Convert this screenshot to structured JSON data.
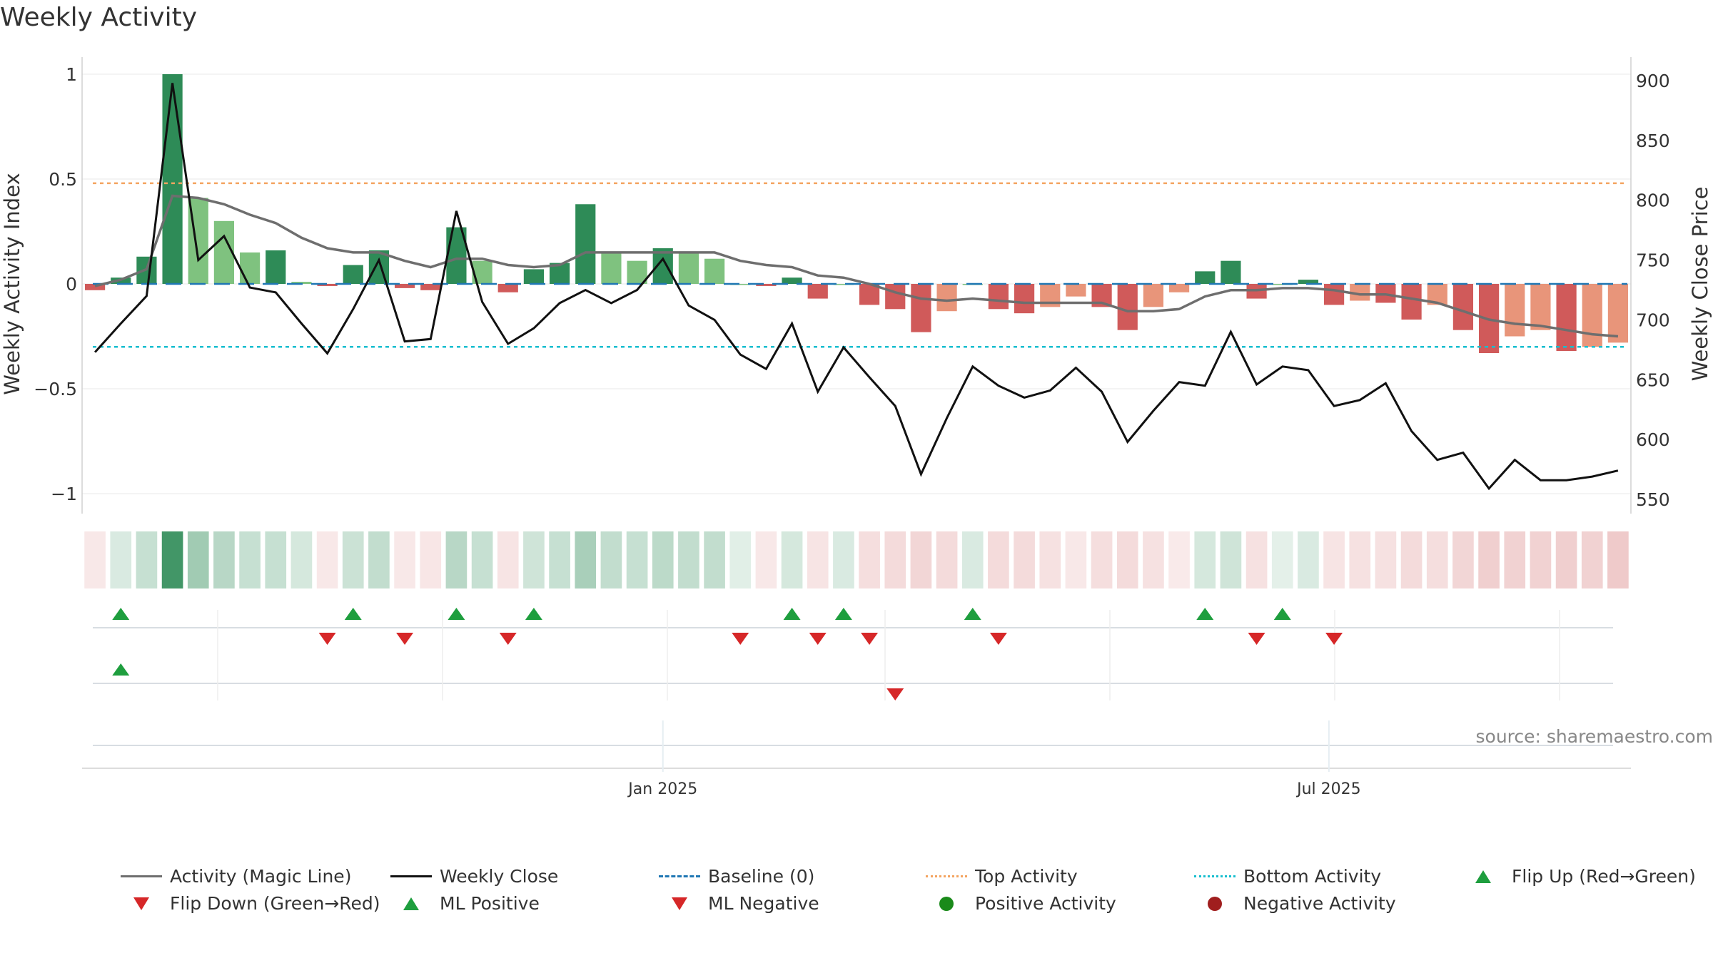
{
  "title": "Weekly Activity",
  "source": "source: sharemaestro.com",
  "colors": {
    "pos_strong": "#2e8b57",
    "pos_light": "#7fc27f",
    "neg_strong": "#d05a5a",
    "neg_light": "#e8957a",
    "magic_line": "#6e6e6e",
    "close_line": "#111111",
    "baseline": "#1f77b4",
    "top_line": "#f4a460",
    "bottom_line": "#17becf",
    "flip_up": "#1e9e3e",
    "flip_down": "#d62728",
    "pos_dot": "#1a8a1a",
    "neg_dot": "#a01e1e"
  },
  "chart_data": {
    "type": "bar+line",
    "title": "Weekly Activity",
    "ylabel_left": "Weekly Activity Index",
    "ylabel_right": "Weekly Close Price",
    "ylim_left": [
      -1.1,
      1.05
    ],
    "ylim_right": [
      545,
      905
    ],
    "yticks_left": [
      1,
      0.5,
      0,
      -0.5,
      -1
    ],
    "ytick_labels_left": [
      "1",
      "0.5",
      "0",
      "−0.5",
      "−1"
    ],
    "yticks_right": [
      900,
      850,
      800,
      750,
      700,
      650,
      600,
      550
    ],
    "ytick_labels_right": [
      "900",
      "850",
      "800",
      "750",
      "700",
      "650",
      "600",
      "550"
    ],
    "x_tick_labels": [
      {
        "label": "Jan 2025",
        "week": 22.5
      },
      {
        "label": "Jul 2025",
        "week": 48.3
      }
    ],
    "top_activity": 0.48,
    "bottom_activity": -0.3,
    "activity": [
      -0.03,
      0.03,
      0.13,
      1.0,
      0.41,
      0.3,
      0.15,
      0.16,
      0.01,
      -0.01,
      0.09,
      0.16,
      -0.02,
      -0.03,
      0.27,
      0.11,
      -0.04,
      0.07,
      0.1,
      0.38,
      0.15,
      0.11,
      0.17,
      0.15,
      0.12,
      0.0,
      -0.01,
      0.03,
      -0.07,
      0.0,
      -0.1,
      -0.12,
      -0.23,
      -0.13,
      0.0,
      -0.12,
      -0.14,
      -0.11,
      -0.06,
      -0.11,
      -0.22,
      -0.11,
      -0.04,
      0.06,
      0.11,
      -0.07,
      0.0,
      0.02,
      -0.1,
      -0.08,
      -0.09,
      -0.17,
      -0.1,
      -0.22,
      -0.33,
      -0.25,
      -0.22,
      -0.32,
      -0.3,
      -0.28
    ],
    "strong": [
      1,
      1,
      1,
      1,
      0,
      0,
      0,
      1,
      0,
      1,
      1,
      1,
      1,
      1,
      1,
      0,
      1,
      1,
      1,
      1,
      0,
      0,
      1,
      0,
      0,
      0,
      1,
      1,
      1,
      0,
      1,
      1,
      1,
      0,
      0,
      1,
      1,
      0,
      0,
      1,
      1,
      0,
      0,
      1,
      1,
      1,
      0,
      1,
      1,
      0,
      1,
      1,
      0,
      1,
      1,
      0,
      0,
      1,
      0,
      0
    ],
    "magic_line": [
      -0.01,
      0.02,
      0.07,
      0.42,
      0.41,
      0.38,
      0.33,
      0.29,
      0.22,
      0.17,
      0.15,
      0.15,
      0.11,
      0.08,
      0.12,
      0.12,
      0.09,
      0.08,
      0.09,
      0.15,
      0.15,
      0.15,
      0.15,
      0.15,
      0.15,
      0.11,
      0.09,
      0.08,
      0.04,
      0.03,
      0.0,
      -0.04,
      -0.07,
      -0.08,
      -0.07,
      -0.08,
      -0.09,
      -0.09,
      -0.09,
      -0.09,
      -0.13,
      -0.13,
      -0.12,
      -0.06,
      -0.03,
      -0.03,
      -0.02,
      -0.02,
      -0.03,
      -0.05,
      -0.05,
      -0.07,
      -0.09,
      -0.13,
      -0.17,
      -0.19,
      -0.2,
      -0.22,
      -0.24,
      -0.25
    ],
    "weekly_close": [
      673,
      697,
      720,
      898,
      750,
      770,
      727,
      723,
      697,
      672,
      709,
      750,
      682,
      684,
      791,
      715,
      680,
      693,
      714,
      725,
      714,
      725,
      751,
      712,
      700,
      671,
      659,
      697,
      640,
      677,
      652,
      628,
      571,
      618,
      661,
      645,
      635,
      641,
      660,
      640,
      598,
      624,
      648,
      645,
      690,
      646,
      661,
      658,
      628,
      633,
      647,
      607,
      583,
      589,
      559,
      583,
      566,
      566,
      569,
      574
    ],
    "intensity_strip": [
      0.15,
      0.2,
      0.3,
      1.0,
      0.5,
      0.38,
      0.3,
      0.3,
      0.22,
      0.15,
      0.28,
      0.32,
      0.15,
      0.17,
      0.38,
      0.3,
      0.18,
      0.25,
      0.3,
      0.45,
      0.32,
      0.3,
      0.35,
      0.32,
      0.32,
      0.15,
      0.15,
      0.22,
      0.18,
      0.2,
      0.22,
      0.24,
      0.28,
      0.24,
      0.2,
      0.24,
      0.24,
      0.2,
      0.16,
      0.22,
      0.24,
      0.2,
      0.14,
      0.22,
      0.25,
      0.2,
      0.14,
      0.2,
      0.18,
      0.2,
      0.2,
      0.24,
      0.22,
      0.28,
      0.32,
      0.3,
      0.3,
      0.32,
      0.3,
      0.35
    ],
    "flip_up": [
      1,
      10,
      14,
      17,
      27,
      29,
      34,
      43,
      46
    ],
    "flip_down": [
      9,
      12,
      16,
      25,
      28,
      30,
      35,
      45,
      48
    ],
    "ml_positive": [
      1
    ],
    "ml_negative": [
      31
    ],
    "positive_activity": [],
    "negative_activity": []
  },
  "legend": [
    {
      "label": "Activity (Magic Line)",
      "icon": "line"
    },
    {
      "label": "Weekly Close",
      "icon": "line-black"
    },
    {
      "label": "Baseline (0)",
      "icon": "dash"
    },
    {
      "label": "Top Activity",
      "icon": "dot-orange"
    },
    {
      "label": "Bottom Activity",
      "icon": "dot-cyan"
    },
    {
      "label": "Flip Up (Red→Green)",
      "icon": "triangle-up"
    },
    {
      "label": "Flip Down (Green→Red)",
      "icon": "triangle-down"
    },
    {
      "label": "ML Positive",
      "icon": "triangle-up"
    },
    {
      "label": "ML Negative",
      "icon": "triangle-down"
    },
    {
      "label": "Positive Activity",
      "icon": "circle-green"
    },
    {
      "label": "Negative Activity",
      "icon": "circle-red"
    }
  ]
}
